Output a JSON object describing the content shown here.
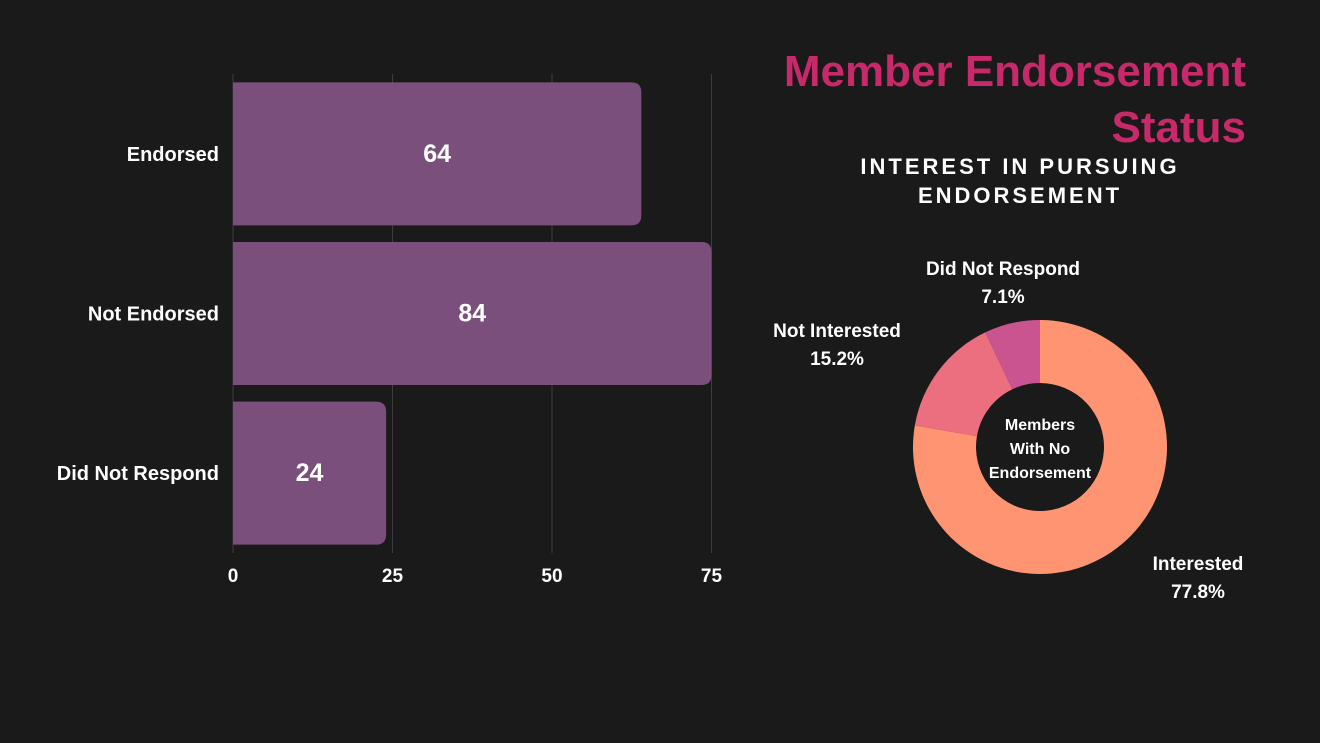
{
  "title": "Member Endorsement Status",
  "subtitle": "INTEREST IN PURSUING ENDORSEMENT",
  "colors": {
    "background": "#1a1a1a",
    "bar": "#7b4f7b",
    "title": "#c7296a",
    "text": "#ffffff",
    "gridline": "#3e3e3e",
    "interested": "#ff9472",
    "not_interested": "#ec6f80",
    "did_not_respond": "#c9548f",
    "donut_hole": "#1a1a1a"
  },
  "chart_data": [
    {
      "type": "bar",
      "orientation": "horizontal",
      "categories": [
        "Endorsed",
        "Not Endorsed",
        "Did Not Respond"
      ],
      "values": [
        64,
        84,
        24
      ],
      "data_labels": [
        "64",
        "84",
        "24"
      ],
      "xlim": [
        0,
        75
      ],
      "xticks": [
        "0",
        "25",
        "50",
        "75"
      ],
      "grid": true,
      "legend": "none"
    },
    {
      "type": "pie",
      "variant": "donut",
      "center_label": "Members With No Endorsement",
      "slices": [
        {
          "label": "Interested",
          "value": 77.8,
          "value_label": "77.8%"
        },
        {
          "label": "Not Interested",
          "value": 15.2,
          "value_label": "15.2%"
        },
        {
          "label": "Did Not Respond",
          "value": 7.1,
          "value_label": "7.1%"
        }
      ],
      "legend": "none"
    }
  ]
}
